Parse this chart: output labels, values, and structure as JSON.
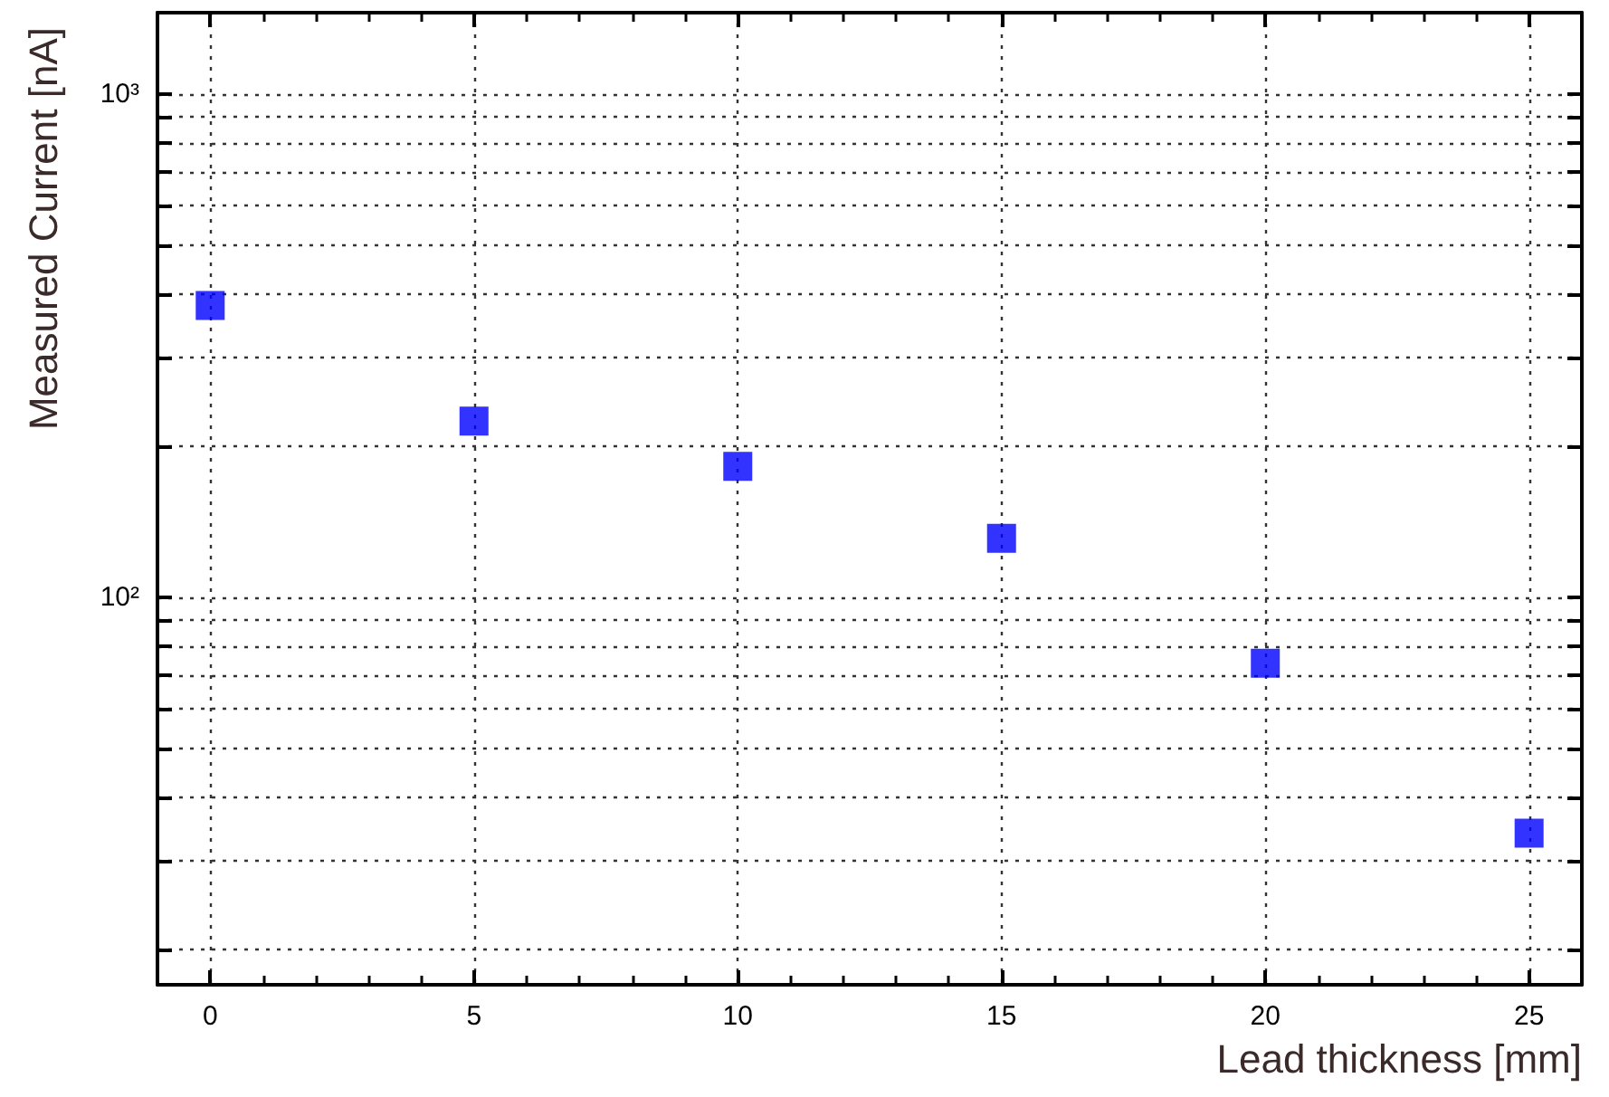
{
  "chart_data": {
    "type": "scatter",
    "xlabel": "Lead thickness [mm]",
    "ylabel": "Measured Current [nA]",
    "x": [
      0,
      5,
      10,
      15,
      20,
      25
    ],
    "series": [
      {
        "color": "#0000ff",
        "values": [
          380,
          224,
          182,
          131,
          74,
          34
        ]
      }
    ],
    "xlim": [
      -1,
      26
    ],
    "xticks": [
      0,
      5,
      10,
      15,
      20,
      25
    ],
    "ylim": [
      17,
      1450
    ],
    "log": "y",
    "yticks": [
      {
        "value": 20,
        "label": null
      },
      {
        "value": 30,
        "label": null
      },
      {
        "value": 40,
        "label": null
      },
      {
        "value": 50,
        "label": null
      },
      {
        "value": 60,
        "label": null
      },
      {
        "value": 70,
        "label": null
      },
      {
        "value": 80,
        "label": null
      },
      {
        "value": 90,
        "label": null
      },
      {
        "value": 100,
        "label": "10²"
      },
      {
        "value": 200,
        "label": null
      },
      {
        "value": 300,
        "label": null
      },
      {
        "value": 400,
        "label": null
      },
      {
        "value": 500,
        "label": null
      },
      {
        "value": 600,
        "label": null
      },
      {
        "value": 700,
        "label": null
      },
      {
        "value": 800,
        "label": null
      },
      {
        "value": 900,
        "label": null
      },
      {
        "value": 1000,
        "label": "10³"
      }
    ],
    "grid": true,
    "marker": "square"
  }
}
